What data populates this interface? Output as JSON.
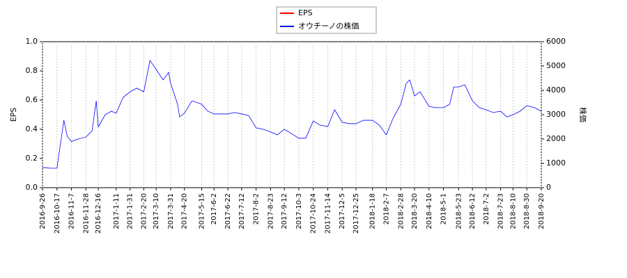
{
  "chart_data": {
    "type": "line",
    "y_label": "EPS",
    "y2_label": "株価",
    "xlim": [
      "2016-9-26",
      "2018-9-20"
    ],
    "xticks": [
      "2016-9-26",
      "2016-10-17",
      "2016-11-7",
      "2016-11-28",
      "2016-12-16",
      "2017-1-11",
      "2017-1-31",
      "2017-2-20",
      "2017-3-10",
      "2017-3-31",
      "2017-4-20",
      "2017-5-15",
      "2017-6-2",
      "2017-6-22",
      "2017-7-12",
      "2017-8-2",
      "2017-8-23",
      "2017-9-12",
      "2017-10-3",
      "2017-10-24",
      "2017-11-14",
      "2017-12-5",
      "2017-12-25",
      "2018-1-18",
      "2018-2-7",
      "2018-2-28",
      "2018-3-20",
      "2018-4-10",
      "2018-5-1",
      "2018-5-23",
      "2018-6-12",
      "2018-7-2",
      "2018-7-23",
      "2018-8-10",
      "2018-8-30",
      "2018-9-20"
    ],
    "ylim": [
      0,
      1
    ],
    "yticks": [
      {
        "value": 0,
        "label": "0.0"
      },
      {
        "value": 0.2,
        "label": "0.2"
      },
      {
        "value": 0.4,
        "label": "0.4"
      },
      {
        "value": 0.6,
        "label": "0.6"
      },
      {
        "value": 0.8,
        "label": "0.8"
      },
      {
        "value": 1,
        "label": "1.0"
      }
    ],
    "y2lim": [
      0,
      6000
    ],
    "y2ticks": [
      0,
      1000,
      2000,
      3000,
      4000,
      5000,
      6000
    ],
    "legend": "top",
    "x": [
      "2016-9-26",
      "2016-10-7",
      "2016-10-17",
      "2016-10-27",
      "2016-11-1",
      "2016-11-7",
      "2016-11-17",
      "2016-11-28",
      "2016-12-7",
      "2016-12-13",
      "2016-12-16",
      "2016-12-26",
      "2017-1-4",
      "2017-1-11",
      "2017-1-21",
      "2017-1-31",
      "2017-2-10",
      "2017-2-20",
      "2017-3-1",
      "2017-3-10",
      "2017-3-20",
      "2017-3-28",
      "2017-3-31",
      "2017-4-10",
      "2017-4-13",
      "2017-4-20",
      "2017-5-1",
      "2017-5-15",
      "2017-5-24",
      "2017-6-2",
      "2017-6-12",
      "2017-6-22",
      "2017-7-2",
      "2017-7-12",
      "2017-7-22",
      "2017-8-2",
      "2017-8-12",
      "2017-8-23",
      "2017-9-2",
      "2017-9-12",
      "2017-9-22",
      "2017-10-3",
      "2017-10-13",
      "2017-10-24",
      "2017-11-3",
      "2017-11-14",
      "2017-11-24",
      "2017-12-5",
      "2017-12-15",
      "2017-12-25",
      "2018-1-5",
      "2018-1-18",
      "2018-1-28",
      "2018-2-7",
      "2018-2-17",
      "2018-2-28",
      "2018-3-8",
      "2018-3-13",
      "2018-3-20",
      "2018-3-28",
      "2018-4-10",
      "2018-4-20",
      "2018-5-1",
      "2018-5-10",
      "2018-5-16",
      "2018-5-23",
      "2018-6-1",
      "2018-6-12",
      "2018-6-22",
      "2018-7-2",
      "2018-7-12",
      "2018-7-23",
      "2018-8-1",
      "2018-8-10",
      "2018-8-20",
      "2018-8-30",
      "2018-9-10",
      "2018-9-20"
    ],
    "series": [
      {
        "name": "EPS",
        "color": "#ff0000",
        "values": [
          null,
          null,
          null,
          null,
          null,
          null,
          null,
          null,
          null,
          null,
          null,
          null,
          null,
          null,
          null,
          null,
          null,
          null,
          null,
          null,
          null,
          null,
          null,
          null,
          null,
          null,
          null,
          null,
          null,
          null,
          null,
          null,
          null,
          null,
          null,
          null,
          null,
          null,
          null,
          null,
          null,
          null,
          null,
          null,
          null,
          null,
          null,
          null,
          null,
          null,
          null,
          null,
          null,
          null,
          null,
          null,
          null,
          null,
          null,
          null,
          null,
          null,
          null,
          null,
          null,
          null,
          null,
          null,
          null,
          null,
          null,
          null,
          null,
          null,
          null,
          null,
          null,
          null
        ]
      },
      {
        "name": "オウチーノの株価",
        "color": "#0000ff",
        "axis": "y2",
        "values": [
          830,
          800,
          800,
          2770,
          2100,
          1900,
          2000,
          2080,
          2340,
          3570,
          2500,
          3000,
          3140,
          3060,
          3710,
          3940,
          4090,
          3940,
          5230,
          4860,
          4430,
          4740,
          4290,
          3430,
          2910,
          3060,
          3570,
          3430,
          3140,
          3030,
          3030,
          3030,
          3090,
          3030,
          2970,
          2460,
          2400,
          2290,
          2170,
          2400,
          2230,
          2030,
          2030,
          2740,
          2570,
          2510,
          3200,
          2690,
          2630,
          2630,
          2770,
          2770,
          2570,
          2170,
          2860,
          3430,
          4290,
          4430,
          3770,
          3940,
          3340,
          3290,
          3290,
          3430,
          4140,
          4140,
          4230,
          3570,
          3290,
          3200,
          3090,
          3140,
          2910,
          3000,
          3140,
          3370,
          3290,
          3140
        ]
      }
    ]
  }
}
